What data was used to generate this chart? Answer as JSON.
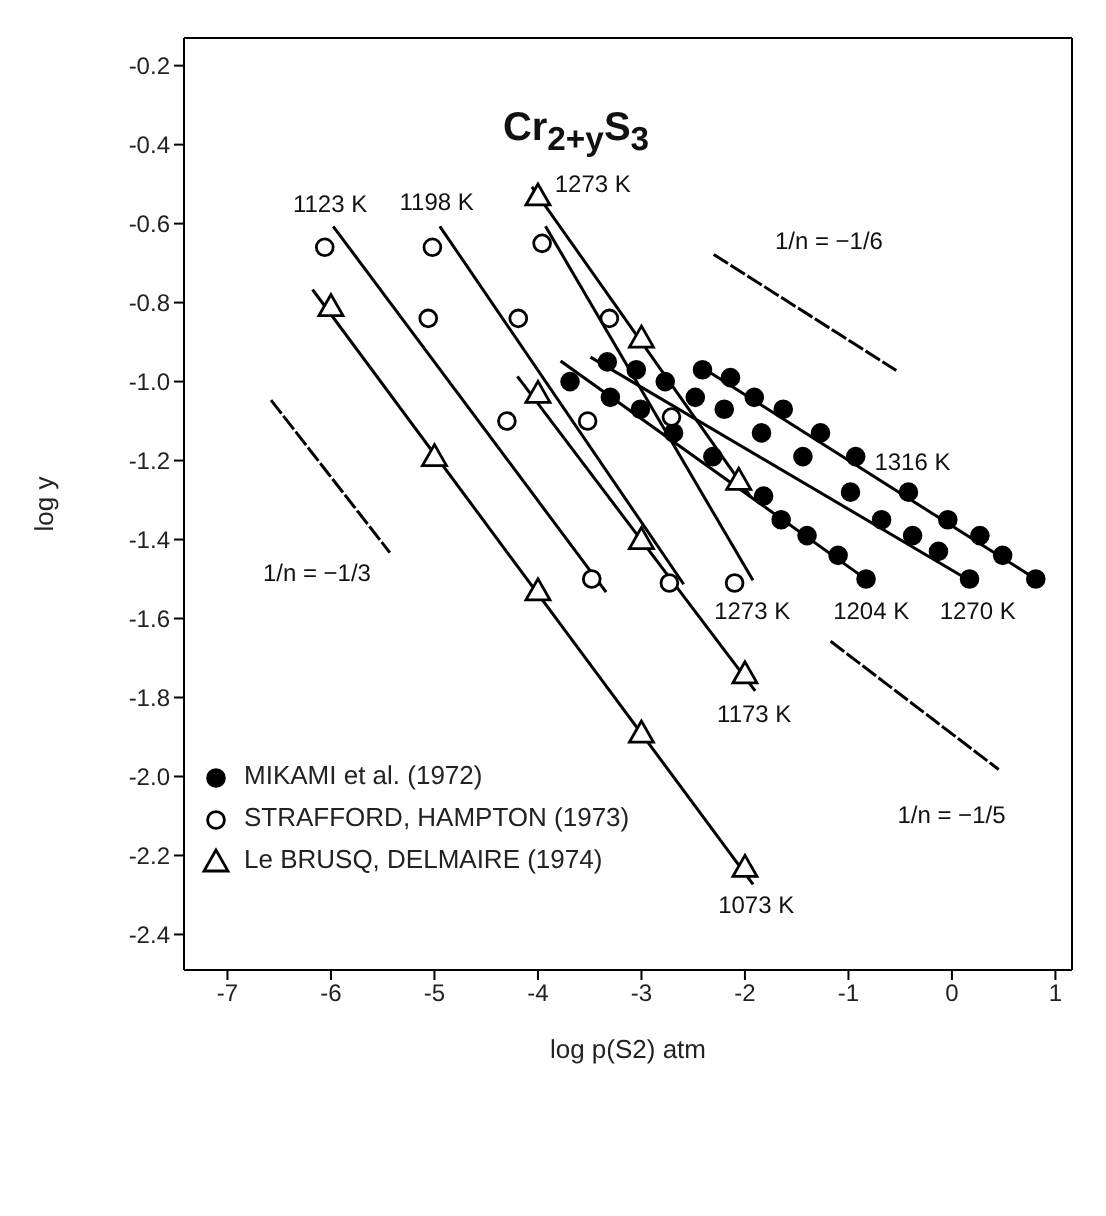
{
  "chart_data": {
    "type": "scatter",
    "title": "Cr$_{2+y}$S$_{3}$",
    "xlabel": "log p(S2) atm",
    "ylabel": "log y",
    "xlim": [
      -7.42,
      1.16
    ],
    "xticks": [
      -7,
      -6,
      -5,
      -4,
      -3,
      -2,
      -1,
      0,
      1
    ],
    "ylim": [
      -2.49,
      -0.13
    ],
    "yticks": [
      -0.2,
      -0.4,
      -0.6,
      -0.8,
      {
        "value": -1,
        "label": "-1.0"
      },
      -1.2,
      -1.4,
      -1.6,
      -1.8,
      {
        "value": -2,
        "label": "-2.0"
      },
      -2.2,
      -2.4
    ],
    "legend": "bottom left",
    "series": [
      {
        "name": "MIKAMI et al. (1972)",
        "marker": "circle",
        "color": "#000000",
        "x": [
          -2.41,
          -2.14,
          -1.91,
          -1.63,
          -1.27,
          -0.93,
          -0.42,
          -0.04,
          0.27,
          0.49,
          0.81,
          -3.33,
          -3.05,
          -2.77,
          -2.48,
          -2.2,
          -1.84,
          -1.44,
          -0.98,
          -0.68,
          -0.38,
          -0.13,
          0.17,
          -3.69,
          -3.3,
          -3.01,
          -2.69,
          -2.31,
          -1.82,
          -1.65,
          -1.4,
          -1.1,
          -0.83
        ],
        "values": [
          -0.97,
          -0.99,
          -1.04,
          -1.07,
          -1.13,
          -1.19,
          -1.28,
          -1.35,
          -1.39,
          -1.44,
          -1.5,
          -0.95,
          -0.97,
          -1.0,
          -1.04,
          -1.07,
          -1.13,
          -1.19,
          -1.28,
          -1.35,
          -1.39,
          -1.43,
          -1.5,
          -1.0,
          -1.04,
          -1.07,
          -1.13,
          -1.19,
          -1.29,
          -1.35,
          -1.39,
          -1.44,
          -1.5
        ]
      },
      {
        "name": "STRAFFORD, HAMPTON (1973)",
        "marker": "circle",
        "color": "#000000",
        "x": [
          -6.06,
          -5.06,
          -4.3,
          -3.48,
          -5.02,
          -4.19,
          -3.52,
          -2.73,
          -3.96,
          -3.31,
          -2.71,
          -2.1
        ],
        "values": [
          -0.66,
          -0.84,
          -1.1,
          -1.5,
          -0.66,
          -0.84,
          -1.1,
          -1.51,
          -0.65,
          -0.84,
          -1.09,
          -1.51
        ]
      },
      {
        "name": "Le BRUSQ, DELMAIRE (1974)",
        "marker": "triangle",
        "color": "#000000",
        "x": [
          -6,
          -5,
          -4,
          -3,
          -2,
          -4,
          -3,
          -2,
          -4,
          -3,
          -2.06
        ],
        "values": [
          -0.81,
          -1.19,
          -1.53,
          -1.89,
          -2.23,
          -1.03,
          -1.4,
          -1.74,
          -0.53,
          -0.89,
          -1.25
        ]
      },
      {
        "type": "line",
        "color": "#000000",
        "line_style": "solid",
        "x": [
          -6.17,
          -1.93
        ],
        "values": [
          -0.77,
          -2.27
        ]
      },
      {
        "type": "line",
        "color": "#000000",
        "line_style": "solid",
        "x": [
          -4.19,
          -1.91
        ],
        "values": [
          -0.99,
          -1.78
        ]
      },
      {
        "type": "line",
        "color": "#000000",
        "line_style": "solid",
        "x": [
          -4.05,
          -1.95
        ],
        "values": [
          -0.51,
          -1.29
        ]
      },
      {
        "type": "line",
        "color": "#000000",
        "line_style": "solid",
        "x": [
          -5.97,
          -3.35
        ],
        "values": [
          -0.61,
          -1.53
        ]
      },
      {
        "type": "line",
        "color": "#000000",
        "line_style": "solid",
        "x": [
          -4.94,
          -2.6
        ],
        "values": [
          -0.61,
          -1.51
        ]
      },
      {
        "type": "line",
        "color": "#000000",
        "line_style": "solid",
        "x": [
          -3.92,
          -1.93
        ],
        "values": [
          -0.61,
          -1.5
        ]
      },
      {
        "type": "line",
        "color": "#000000",
        "line_style": "solid",
        "x": [
          -2.44,
          0.87
        ],
        "values": [
          -0.96,
          -1.51
        ]
      },
      {
        "type": "line",
        "color": "#000000",
        "line_style": "solid",
        "x": [
          -3.48,
          0.21
        ],
        "values": [
          -0.94,
          -1.51
        ]
      },
      {
        "type": "line",
        "color": "#000000",
        "line_style": "solid",
        "x": [
          -3.77,
          -0.78
        ],
        "values": [
          -0.95,
          -1.51
        ]
      },
      {
        "type": "line",
        "color": "#000000",
        "line_style": "dashed",
        "x": [
          -6.57,
          -5.44
        ],
        "values": [
          -1.05,
          -1.43
        ]
      },
      {
        "type": "line",
        "color": "#000000",
        "line_style": "dashed",
        "x": [
          -2.29,
          -0.55
        ],
        "values": [
          -0.68,
          -0.97
        ]
      },
      {
        "type": "line",
        "color": "#000000",
        "line_style": "dashed",
        "x": [
          -1.16,
          0.44
        ],
        "values": [
          -1.66,
          -1.98
        ]
      }
    ],
    "annotations": [
      {
        "text": "1123 K",
        "x": -5.97,
        "y": -0.61
      },
      {
        "text": "1198 K",
        "x": -4.94,
        "y": -0.61
      },
      {
        "text": "1273 K",
        "x": -4.05,
        "y": -0.51
      },
      {
        "text": "1316 K",
        "x": -0.42,
        "y": -1.28
      },
      {
        "text": "1273 K",
        "x": -1.93,
        "y": -1.5
      },
      {
        "text": "1204 K",
        "x": -0.78,
        "y": -1.51
      },
      {
        "text": "1270 K",
        "x": 0.21,
        "y": -1.51
      },
      {
        "text": "1173 K",
        "x": -1.91,
        "y": -1.78
      },
      {
        "text": "1073 K",
        "x": -1.93,
        "y": -2.27
      },
      {
        "text": "1/n = −1/3",
        "x": -5.44,
        "y": -1.43
      },
      {
        "text": "1/n = −1/6",
        "x": -2.29,
        "y": -0.68
      },
      {
        "text": "1/n = −1/5",
        "x": 0.44,
        "y": -1.98
      }
    ]
  }
}
